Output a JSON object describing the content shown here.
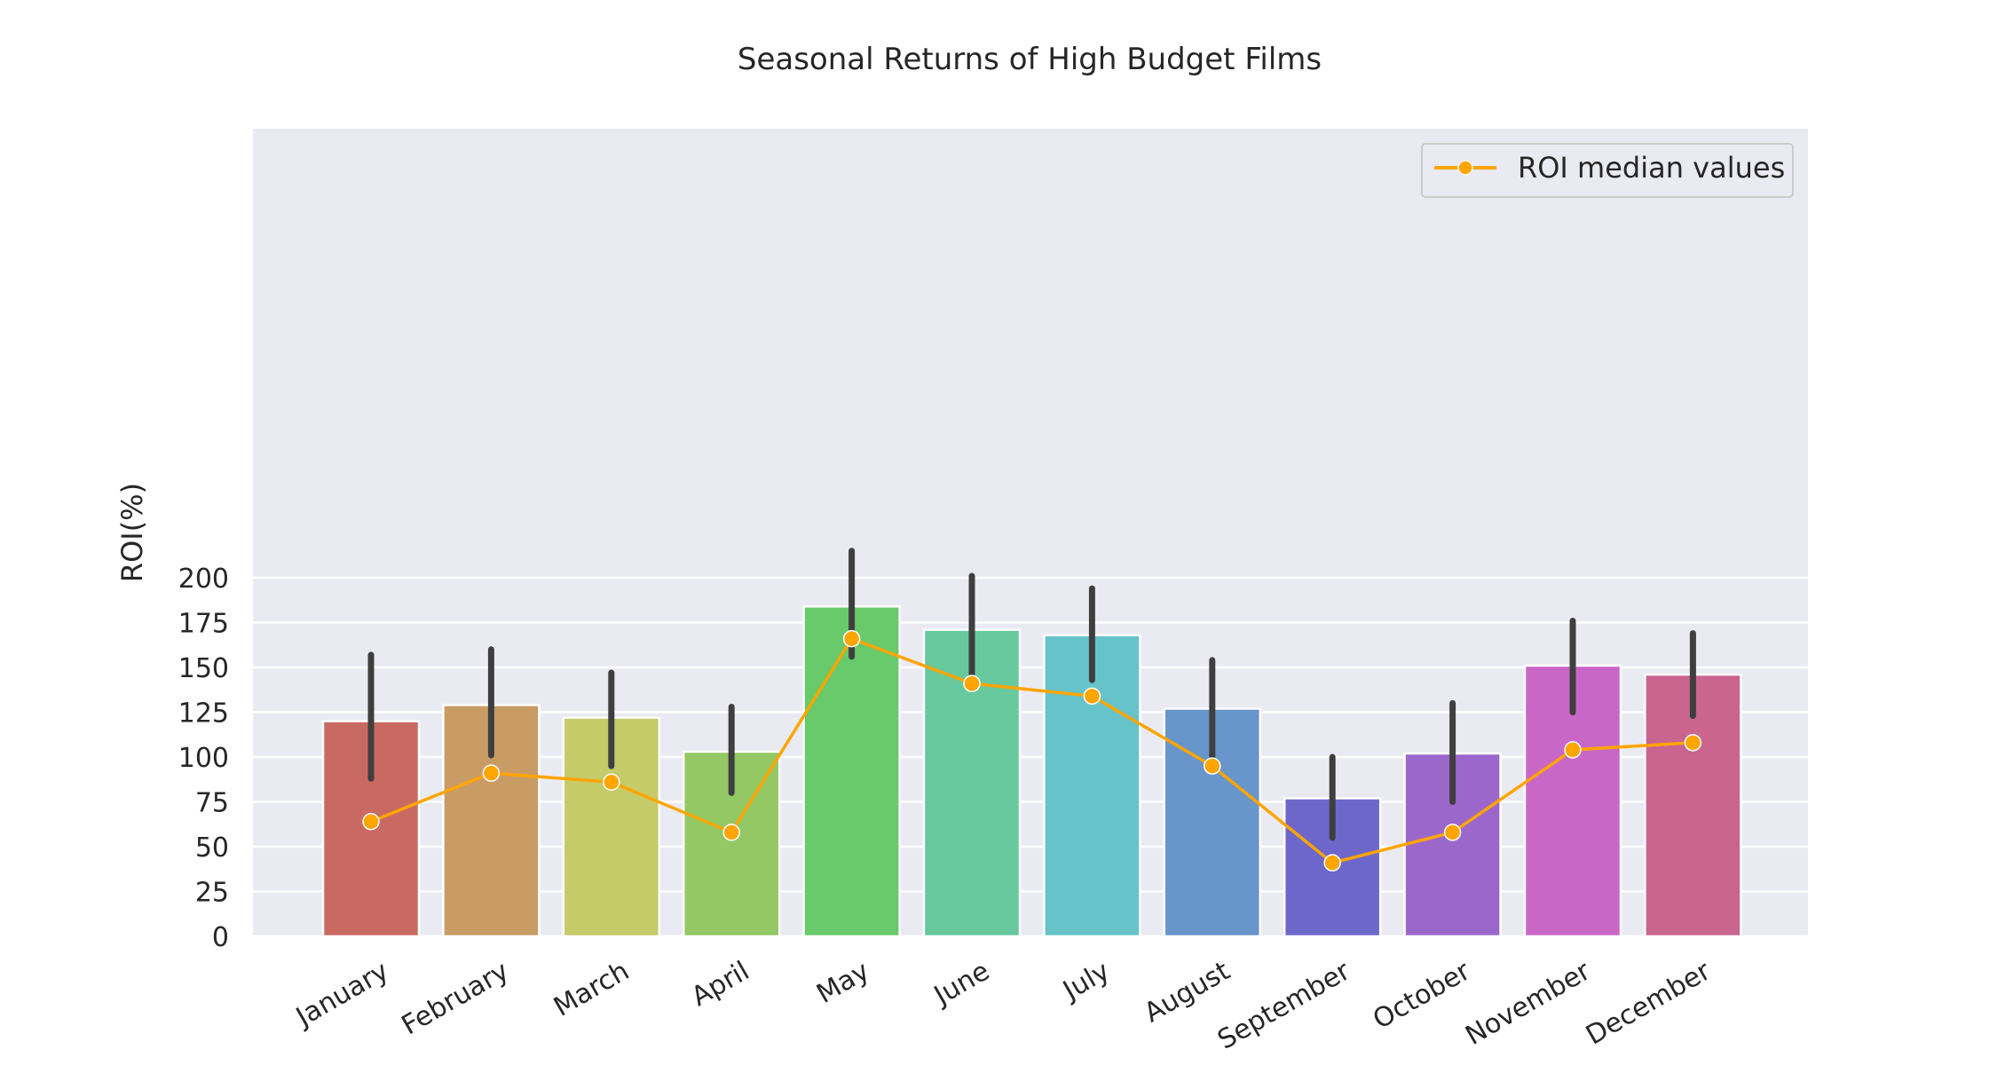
{
  "chart_data": {
    "type": "bar",
    "title": "Seasonal Returns of High Budget Films",
    "xlabel": "",
    "ylabel": "ROI(%)",
    "ylim": [
      0,
      225
    ],
    "yticks": [
      0,
      25,
      50,
      75,
      100,
      125,
      150,
      175,
      200
    ],
    "grid": true,
    "legend_position": "top-right",
    "categories": [
      "January",
      "February",
      "March",
      "April",
      "May",
      "June",
      "July",
      "August",
      "September",
      "October",
      "November",
      "December"
    ],
    "series": [
      {
        "type": "bar",
        "values": [
          120,
          129,
          122,
          103,
          184,
          171,
          168,
          127,
          77,
          102,
          151,
          146
        ],
        "error_low": [
          88,
          101,
          95,
          80,
          156,
          144,
          143,
          100,
          55,
          75,
          125,
          123
        ],
        "error_high": [
          157,
          160,
          147,
          128,
          215,
          201,
          194,
          154,
          100,
          130,
          176,
          169
        ],
        "colors": [
          "#c96a62",
          "#c99c65",
          "#c5cb68",
          "#93c865",
          "#68ca6a",
          "#67c99d",
          "#67c3ca",
          "#6895ca",
          "#6e67ca",
          "#9c67cb",
          "#c967c6",
          "#c9658f"
        ]
      },
      {
        "type": "line",
        "name": "ROI median values",
        "values": [
          64,
          91,
          86,
          58,
          166,
          141,
          134,
          95,
          41,
          58,
          104,
          108
        ],
        "color": "#ffa500"
      }
    ]
  }
}
